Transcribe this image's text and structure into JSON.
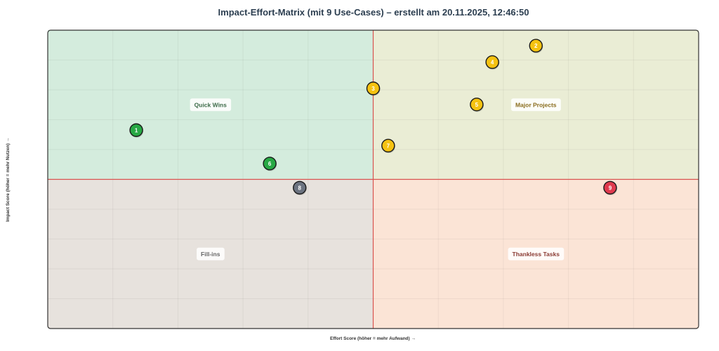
{
  "chart_data": {
    "type": "scatter",
    "title": "Impact-Effort-Matrix (mit 9 Use-Cases) – erstellt am 20.11.2025, 12:46:50",
    "xlabel": "Effort Score (höher = mehr Aufwand) →",
    "ylabel": "Impact Score (höher = mehr Nutzen) →",
    "xlim": [
      0,
      100
    ],
    "ylim": [
      0,
      100
    ],
    "divider": {
      "x": 50,
      "y": 50
    },
    "grid": true,
    "quadrants": [
      {
        "id": "quick-wins",
        "label": "Quick Wins",
        "position": "top-left",
        "fill": "#d4ecdd",
        "text_color": "#3c6b48"
      },
      {
        "id": "major-projects",
        "label": "Major Projects",
        "position": "top-right",
        "fill": "#eaedd5",
        "text_color": "#8a6d1e"
      },
      {
        "id": "fill-ins",
        "label": "Fill-ins",
        "position": "bottom-left",
        "fill": "#e7e2dd",
        "text_color": "#666666"
      },
      {
        "id": "thankless-tasks",
        "label": "Thankless Tasks",
        "position": "bottom-right",
        "fill": "#fbe4d6",
        "text_color": "#8a3a33"
      }
    ],
    "points": [
      {
        "label": "1",
        "x": 13.6,
        "y": 66.5,
        "color": "#27a844"
      },
      {
        "label": "2",
        "x": 75,
        "y": 94.8,
        "color": "#f5c211"
      },
      {
        "label": "3",
        "x": 50,
        "y": 80.5,
        "color": "#f5c211"
      },
      {
        "label": "4",
        "x": 68.3,
        "y": 89.3,
        "color": "#f5c211"
      },
      {
        "label": "5",
        "x": 65.9,
        "y": 75.1,
        "color": "#f5c211"
      },
      {
        "label": "6",
        "x": 34.1,
        "y": 55.3,
        "color": "#27a844"
      },
      {
        "label": "7",
        "x": 52.3,
        "y": 61.3,
        "color": "#f5c211"
      },
      {
        "label": "8",
        "x": 38.7,
        "y": 47.2,
        "color": "#6c7380"
      },
      {
        "label": "9",
        "x": 86.4,
        "y": 47.2,
        "color": "#e03a4e"
      }
    ]
  },
  "colors": {
    "divider": "#d9534f",
    "frame": "#333333",
    "grid": "#000000",
    "title": "#2c3e50"
  }
}
